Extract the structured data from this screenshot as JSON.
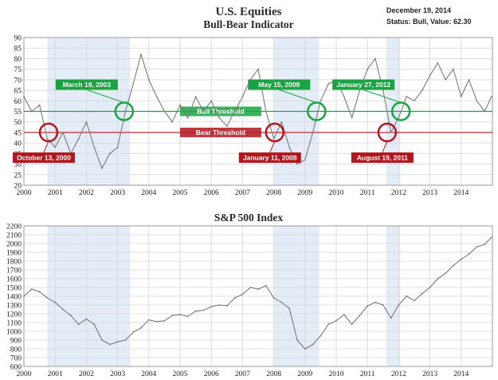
{
  "header": {
    "title_line1": "U.S. Equities",
    "title_line2": "Bull-Bear Indicator",
    "date": "December 19, 2014",
    "status": "Status: Bull, Value: 62.30"
  },
  "colors": {
    "series": "#7a7a7a",
    "shade": "#e3ecf7",
    "bull": "#1aa343",
    "bear": "#b3161d",
    "grid": "#d6d6d6",
    "frame": "#9a9a9a"
  },
  "chart_data": [
    {
      "type": "line",
      "title": "U.S. Equities Bull-Bear Indicator",
      "x_ticks": [
        "2000",
        "2001",
        "2002",
        "2003",
        "2004",
        "2005",
        "2006",
        "2007",
        "2008",
        "2009",
        "2010",
        "2011",
        "2012",
        "2013",
        "2014"
      ],
      "y_ticks": [
        20,
        25,
        30,
        35,
        40,
        45,
        50,
        55,
        60,
        65,
        70,
        75,
        80,
        85,
        90
      ],
      "xlim": [
        2000.0,
        2015.0
      ],
      "ylim": [
        20,
        90
      ],
      "grid": true,
      "shaded_periods": [
        [
          2000.75,
          2003.4
        ],
        [
          2008.0,
          2009.45
        ],
        [
          2011.6,
          2012.05
        ]
      ],
      "thresholds": [
        {
          "label": "Bull Threshold",
          "value": 55,
          "color": "#1aa343"
        },
        {
          "label": "Bear Threshold",
          "value": 45,
          "color": "#b3161d"
        }
      ],
      "signals": [
        {
          "label": "October 13, 2000",
          "x": 2000.79,
          "y": 45,
          "type": "bear"
        },
        {
          "label": "March 19, 2003",
          "x": 2003.21,
          "y": 55,
          "type": "bull"
        },
        {
          "label": "January 11, 2008",
          "x": 2008.03,
          "y": 45,
          "type": "bear"
        },
        {
          "label": "May 15, 2009",
          "x": 2009.37,
          "y": 55,
          "type": "bull"
        },
        {
          "label": "August 19, 2011",
          "x": 2011.63,
          "y": 45,
          "type": "bear"
        },
        {
          "label": "January 27, 2012",
          "x": 2012.07,
          "y": 55,
          "type": "bull"
        }
      ],
      "x": [
        2000.0,
        2000.25,
        2000.5,
        2000.75,
        2001.0,
        2001.25,
        2001.5,
        2001.75,
        2002.0,
        2002.25,
        2002.5,
        2002.75,
        2003.0,
        2003.25,
        2003.5,
        2003.75,
        2004.0,
        2004.25,
        2004.5,
        2004.75,
        2005.0,
        2005.25,
        2005.5,
        2005.75,
        2006.0,
        2006.25,
        2006.5,
        2006.75,
        2007.0,
        2007.25,
        2007.5,
        2007.75,
        2008.0,
        2008.25,
        2008.5,
        2008.75,
        2009.0,
        2009.25,
        2009.5,
        2009.75,
        2010.0,
        2010.25,
        2010.5,
        2010.75,
        2011.0,
        2011.25,
        2011.5,
        2011.75,
        2012.0,
        2012.25,
        2012.5,
        2012.75,
        2013.0,
        2013.25,
        2013.5,
        2013.75,
        2014.0,
        2014.25,
        2014.5,
        2014.75,
        2014.97
      ],
      "values": [
        62,
        55,
        58,
        42,
        38,
        45,
        35,
        42,
        50,
        38,
        28,
        35,
        38,
        55,
        68,
        82,
        70,
        62,
        55,
        50,
        58,
        52,
        62,
        55,
        60,
        52,
        48,
        55,
        62,
        70,
        75,
        55,
        42,
        50,
        38,
        30,
        32,
        45,
        60,
        68,
        70,
        62,
        52,
        65,
        75,
        80,
        65,
        45,
        52,
        62,
        60,
        65,
        72,
        78,
        70,
        75,
        62,
        70,
        60,
        55,
        62
      ]
    },
    {
      "type": "line",
      "title": "S&P 500 Index",
      "x_ticks": [
        "2000",
        "2001",
        "2002",
        "2003",
        "2004",
        "2005",
        "2006",
        "2007",
        "2008",
        "2009",
        "2010",
        "2011",
        "2012",
        "2013",
        "2014"
      ],
      "y_ticks": [
        600,
        700,
        800,
        900,
        1000,
        1100,
        1200,
        1300,
        1400,
        1500,
        1600,
        1700,
        1800,
        1900,
        2000,
        2100,
        2200
      ],
      "xlim": [
        2000.0,
        2015.0
      ],
      "ylim": [
        600,
        2200
      ],
      "grid": true,
      "shaded_periods": [
        [
          2000.75,
          2003.4
        ],
        [
          2008.0,
          2009.45
        ],
        [
          2011.6,
          2012.05
        ]
      ],
      "x": [
        2000.0,
        2000.25,
        2000.5,
        2000.75,
        2001.0,
        2001.25,
        2001.5,
        2001.75,
        2002.0,
        2002.25,
        2002.5,
        2002.75,
        2003.0,
        2003.25,
        2003.5,
        2003.75,
        2004.0,
        2004.25,
        2004.5,
        2004.75,
        2005.0,
        2005.25,
        2005.5,
        2005.75,
        2006.0,
        2006.25,
        2006.5,
        2006.75,
        2007.0,
        2007.25,
        2007.5,
        2007.75,
        2008.0,
        2008.25,
        2008.5,
        2008.75,
        2009.0,
        2009.25,
        2009.5,
        2009.75,
        2010.0,
        2010.25,
        2010.5,
        2010.75,
        2011.0,
        2011.25,
        2011.5,
        2011.75,
        2012.0,
        2012.25,
        2012.5,
        2012.75,
        2013.0,
        2013.25,
        2013.5,
        2013.75,
        2014.0,
        2014.25,
        2014.5,
        2014.75,
        2014.97
      ],
      "values": [
        1400,
        1480,
        1450,
        1380,
        1330,
        1250,
        1180,
        1080,
        1140,
        1080,
        900,
        850,
        880,
        900,
        990,
        1040,
        1130,
        1110,
        1120,
        1180,
        1190,
        1170,
        1230,
        1240,
        1280,
        1300,
        1290,
        1380,
        1420,
        1500,
        1480,
        1520,
        1380,
        1330,
        1260,
        900,
        800,
        850,
        950,
        1080,
        1120,
        1190,
        1080,
        1180,
        1290,
        1330,
        1300,
        1150,
        1300,
        1400,
        1350,
        1430,
        1500,
        1600,
        1660,
        1750,
        1820,
        1880,
        1960,
        1990,
        2070
      ]
    }
  ]
}
